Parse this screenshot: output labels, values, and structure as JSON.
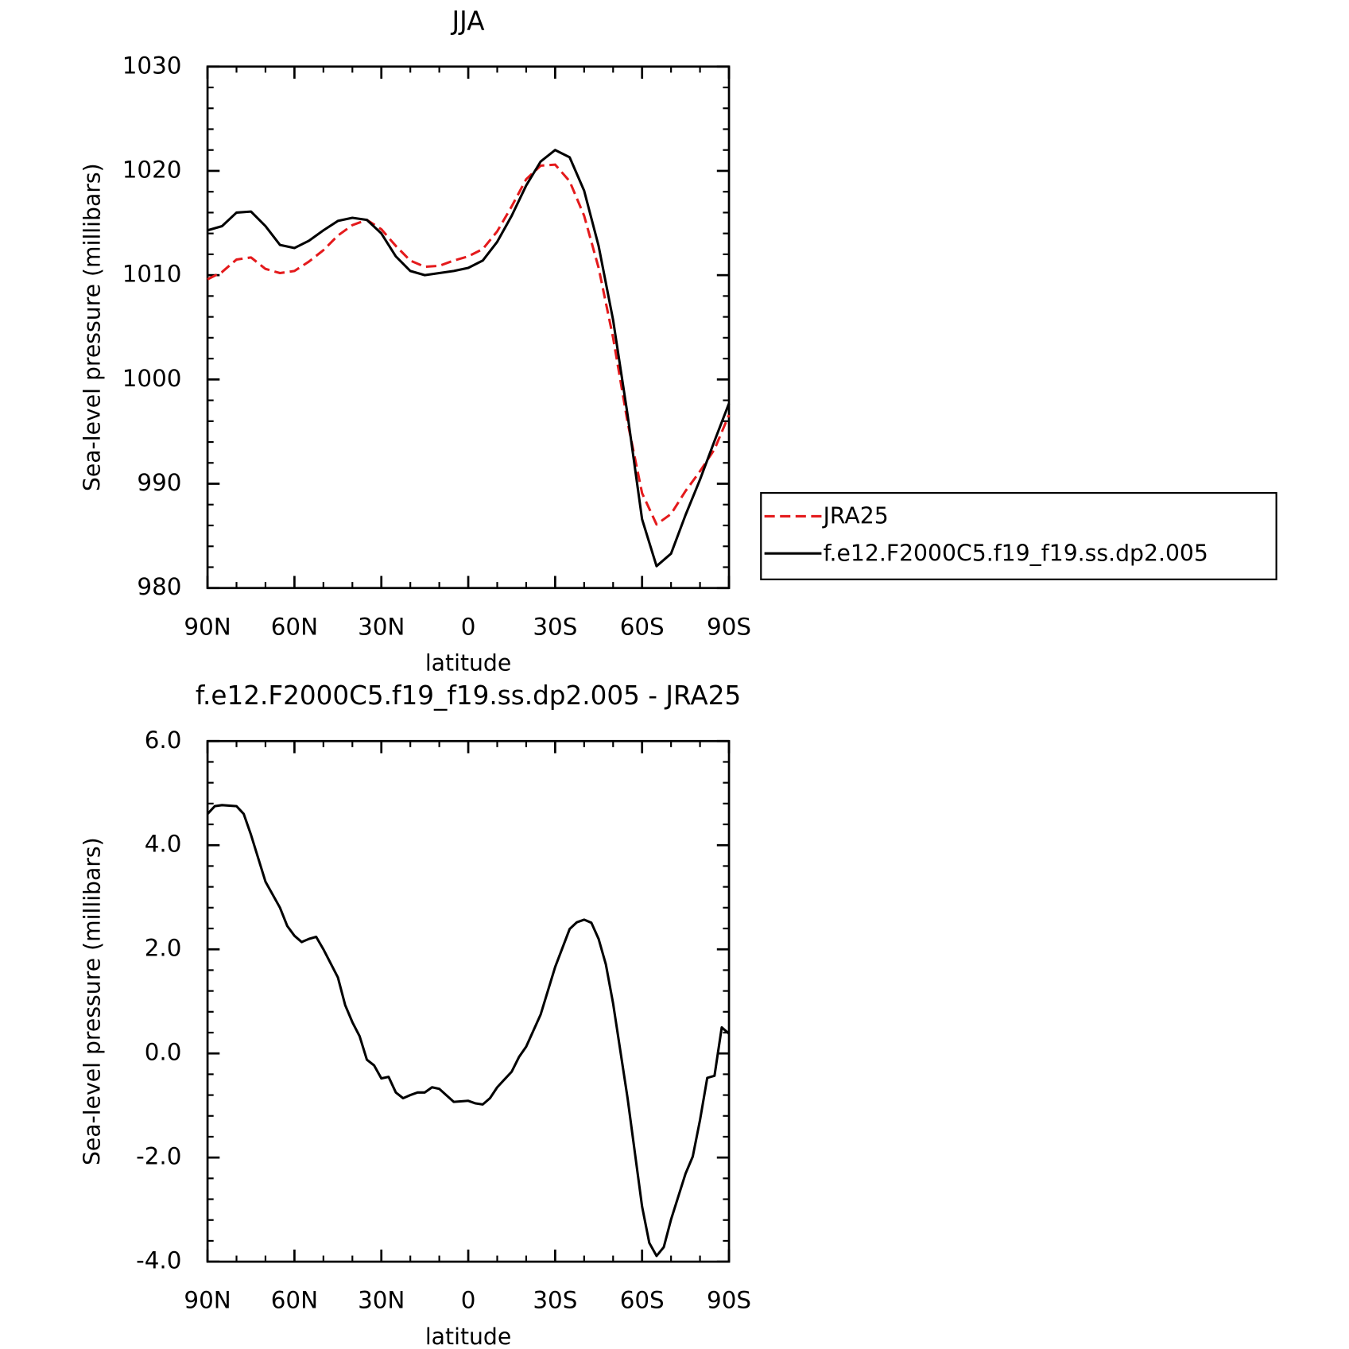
{
  "chart_data": [
    {
      "type": "line",
      "title": "JJA",
      "xlabel": "latitude",
      "ylabel": "Sea-level pressure (millibars)",
      "x": [
        90,
        85,
        80,
        75,
        70,
        65,
        60,
        55,
        50,
        45,
        40,
        35,
        30,
        25,
        20,
        15,
        10,
        5,
        0,
        -5,
        -10,
        -15,
        -20,
        -25,
        -30,
        -35,
        -40,
        -45,
        -50,
        -55,
        -60,
        -65,
        -70,
        -75,
        -80,
        -85,
        -90
      ],
      "series": [
        {
          "name": "JRA25",
          "color": "#e41a1c",
          "dash": true,
          "values": [
            1009.6,
            1010.3,
            1011.5,
            1011.7,
            1010.6,
            1010.2,
            1010.4,
            1011.3,
            1012.4,
            1013.8,
            1014.8,
            1015.3,
            1014.4,
            1012.8,
            1011.4,
            1010.8,
            1010.9,
            1011.4,
            1011.8,
            1012.5,
            1014.2,
            1016.6,
            1019.2,
            1020.5,
            1020.6,
            1019.0,
            1015.7,
            1010.7,
            1004.0,
            995.9,
            989.1,
            986.1,
            987.1,
            989.3,
            991.2,
            993.3,
            996.6
          ]
        },
        {
          "name": "f.e12.F2000C5.f19_f19.ss.dp2.005",
          "color": "#000000",
          "dash": false,
          "values": [
            1014.3,
            1014.7,
            1016.0,
            1016.1,
            1014.7,
            1012.9,
            1012.6,
            1013.3,
            1014.3,
            1015.2,
            1015.5,
            1015.3,
            1014.0,
            1011.8,
            1010.4,
            1010.0,
            1010.2,
            1010.4,
            1010.7,
            1011.4,
            1013.2,
            1015.7,
            1018.6,
            1020.9,
            1022.0,
            1021.3,
            1018.1,
            1012.8,
            1005.7,
            996.6,
            986.6,
            982.1,
            983.3,
            987.0,
            990.4,
            994.1,
            997.7
          ]
        }
      ],
      "xlim": [
        90,
        -90
      ],
      "xticks": [
        {
          "value": 90,
          "label": "90N"
        },
        {
          "value": 60,
          "label": "60N"
        },
        {
          "value": 30,
          "label": "30N"
        },
        0,
        {
          "value": -30,
          "label": "30S"
        },
        {
          "value": -60,
          "label": "60S"
        },
        {
          "value": -90,
          "label": "90S"
        }
      ],
      "ylim": [
        980,
        1030
      ],
      "yticks": [
        980,
        990,
        1000,
        1010,
        1020,
        1030
      ],
      "legend": "right"
    },
    {
      "type": "line",
      "title": "f.e12.F2000C5.f19_f19.ss.dp2.005 - JRA25",
      "xlabel": "latitude",
      "ylabel": "Sea-level pressure (millibars)",
      "x": [
        90,
        87.5,
        85,
        80,
        77.5,
        75,
        70,
        65,
        62.5,
        60,
        57.5,
        55,
        52.5,
        50,
        45,
        42.5,
        40,
        37.5,
        35,
        32.5,
        30,
        27.5,
        25,
        22.5,
        20,
        17.5,
        15,
        12.5,
        10,
        5,
        0,
        -2.5,
        -5,
        -7.5,
        -10,
        -15,
        -17.5,
        -20,
        -25,
        -30,
        -35,
        -37.5,
        -40,
        -42.5,
        -45,
        -47.5,
        -50,
        -55,
        -60,
        -62.5,
        -65,
        -67.5,
        -70,
        -75,
        -77.5,
        -80,
        -82.5,
        -85,
        -87.5,
        -90
      ],
      "values": [
        4.6,
        4.75,
        4.77,
        4.75,
        4.6,
        4.2,
        3.3,
        2.8,
        2.45,
        2.26,
        2.14,
        2.2,
        2.24,
        2.0,
        1.46,
        0.93,
        0.6,
        0.33,
        -0.12,
        -0.23,
        -0.48,
        -0.45,
        -0.75,
        -0.86,
        -0.8,
        -0.75,
        -0.75,
        -0.65,
        -0.68,
        -0.93,
        -0.91,
        -0.96,
        -0.98,
        -0.86,
        -0.65,
        -0.35,
        -0.07,
        0.13,
        0.75,
        1.66,
        2.39,
        2.52,
        2.57,
        2.51,
        2.2,
        1.71,
        0.96,
        -0.86,
        -2.94,
        -3.64,
        -3.89,
        -3.72,
        -3.19,
        -2.31,
        -1.98,
        -1.28,
        -0.47,
        -0.43,
        0.5,
        0.38
      ],
      "color": "#000000",
      "xlim": [
        90,
        -90
      ],
      "xticks": [
        {
          "value": 90,
          "label": "90N"
        },
        {
          "value": 60,
          "label": "60N"
        },
        {
          "value": 30,
          "label": "30N"
        },
        0,
        {
          "value": -30,
          "label": "30S"
        },
        {
          "value": -60,
          "label": "60S"
        },
        {
          "value": -90,
          "label": "90S"
        }
      ],
      "ylim": [
        -4,
        6
      ],
      "yticks": [
        {
          "value": -4,
          "label": "-4.0"
        },
        {
          "value": -2,
          "label": "-2.0"
        },
        {
          "value": 0,
          "label": "0.0"
        },
        {
          "value": 2,
          "label": "2.0"
        },
        {
          "value": 4,
          "label": "4.0"
        },
        {
          "value": 6,
          "label": "6.0"
        }
      ]
    }
  ]
}
